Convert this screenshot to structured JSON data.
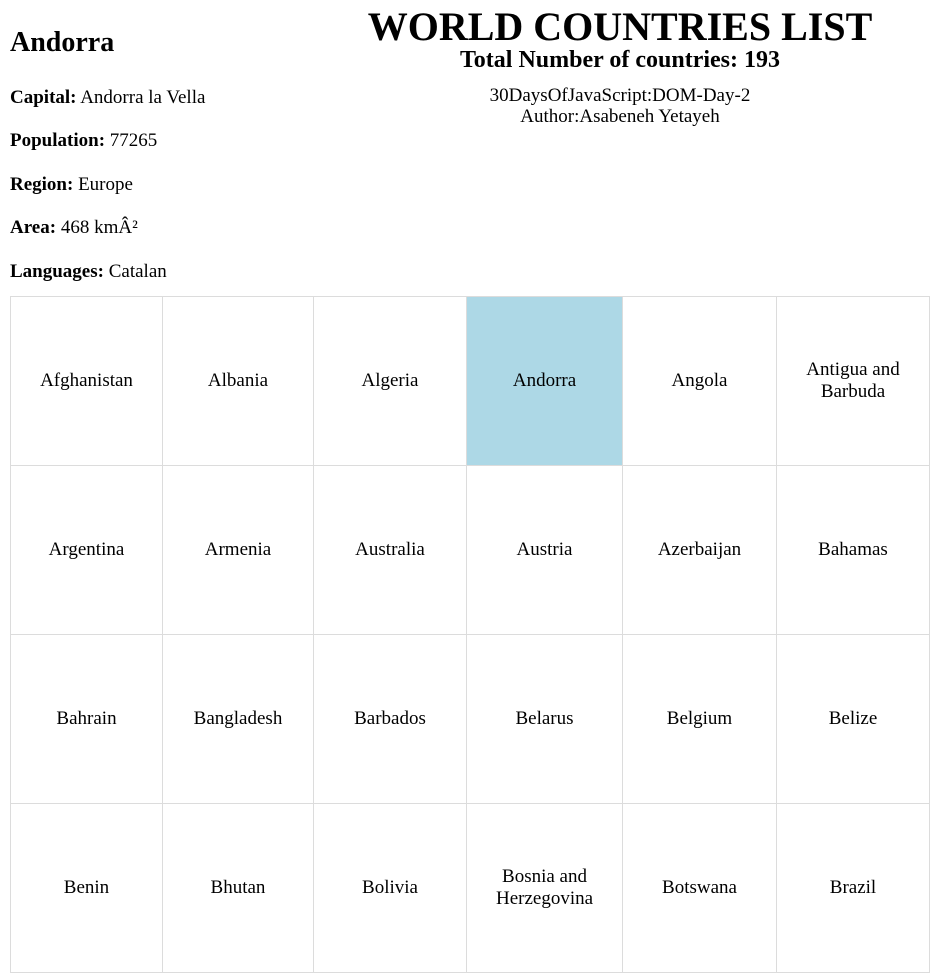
{
  "header": {
    "title": "WORLD COUNTRIES LIST",
    "subtitle": "Total Number of countries: 193",
    "project": "30DaysOfJavaScript:DOM-Day-2",
    "author": "Author:Asabeneh Yetayeh"
  },
  "detail": {
    "name": "Andorra",
    "fields": [
      {
        "label": "Capital:",
        "value": "Andorra la Vella"
      },
      {
        "label": "Population:",
        "value": "77265"
      },
      {
        "label": "Region:",
        "value": "Europe"
      },
      {
        "label": "Area:",
        "value": "468 kmÂ²"
      },
      {
        "label": "Languages:",
        "value": "Catalan"
      }
    ]
  },
  "countries": [
    "Afghanistan",
    "Albania",
    "Algeria",
    "Andorra",
    "Angola",
    "Antigua and Barbuda",
    "Argentina",
    "Armenia",
    "Australia",
    "Austria",
    "Azerbaijan",
    "Bahamas",
    "Bahrain",
    "Bangladesh",
    "Barbados",
    "Belarus",
    "Belgium",
    "Belize",
    "Benin",
    "Bhutan",
    "Bolivia",
    "Bosnia and Herzegovina",
    "Botswana",
    "Brazil"
  ]
}
